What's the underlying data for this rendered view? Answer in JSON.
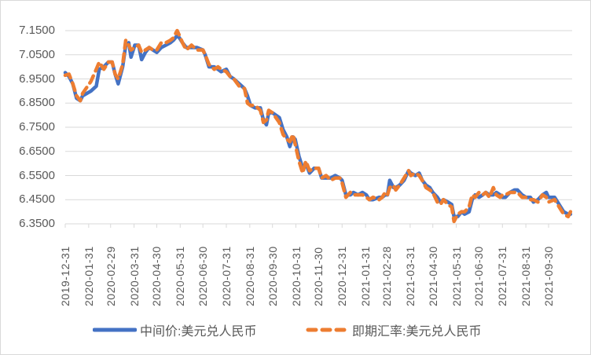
{
  "chart_data": {
    "type": "line",
    "title": "",
    "xlabel": "",
    "ylabel": "",
    "ylim": [
      6.35,
      7.15
    ],
    "grid": true,
    "legend_position": "bottom",
    "y_ticks": [
      "7.1500",
      "7.0500",
      "6.9500",
      "6.8500",
      "6.7500",
      "6.6500",
      "6.5500",
      "6.4500",
      "6.3500"
    ],
    "x_ticks": [
      "2019-12-31",
      "2020-01-31",
      "2020-02-29",
      "2020-03-31",
      "2020-04-30",
      "2020-05-31",
      "2020-06-30",
      "2020-07-31",
      "2020-08-31",
      "2020-09-30",
      "2020-10-31",
      "2020-11-30",
      "2020-12-31",
      "2021-01-31",
      "2021-02-28",
      "2021-03-31",
      "2021-04-30",
      "2021-05-31",
      "2021-06-30",
      "2021-07-31",
      "2021-08-31",
      "2021-09-30"
    ],
    "series": [
      {
        "name": "中间价:美元兑人民币",
        "color": "#4472c4",
        "style": "solid",
        "points": [
          [
            "2019-12-31",
            6.976
          ],
          [
            "2020-01-05",
            6.96
          ],
          [
            "2020-01-10",
            6.93
          ],
          [
            "2020-01-15",
            6.87
          ],
          [
            "2020-01-20",
            6.86
          ],
          [
            "2020-01-23",
            6.88
          ],
          [
            "2020-02-03",
            6.9
          ],
          [
            "2020-02-10",
            6.92
          ],
          [
            "2020-02-14",
            6.99
          ],
          [
            "2020-02-20",
            7.0
          ],
          [
            "2020-02-26",
            7.02
          ],
          [
            "2020-03-02",
            7.02
          ],
          [
            "2020-03-06",
            6.97
          ],
          [
            "2020-03-10",
            6.93
          ],
          [
            "2020-03-16",
            7.0
          ],
          [
            "2020-03-20",
            7.09
          ],
          [
            "2020-03-24",
            7.1
          ],
          [
            "2020-03-27",
            7.04
          ],
          [
            "2020-04-01",
            7.09
          ],
          [
            "2020-04-06",
            7.09
          ],
          [
            "2020-04-10",
            7.03
          ],
          [
            "2020-04-15",
            7.06
          ],
          [
            "2020-04-20",
            7.08
          ],
          [
            "2020-04-25",
            7.07
          ],
          [
            "2020-04-30",
            7.06
          ],
          [
            "2020-05-06",
            7.08
          ],
          [
            "2020-05-12",
            7.09
          ],
          [
            "2020-05-18",
            7.1
          ],
          [
            "2020-05-22",
            7.11
          ],
          [
            "2020-05-27",
            7.13
          ],
          [
            "2020-05-30",
            7.12
          ],
          [
            "2020-06-03",
            7.1
          ],
          [
            "2020-06-08",
            7.08
          ],
          [
            "2020-06-15",
            7.08
          ],
          [
            "2020-06-22",
            7.08
          ],
          [
            "2020-06-30",
            7.07
          ],
          [
            "2020-07-03",
            7.05
          ],
          [
            "2020-07-08",
            7.0
          ],
          [
            "2020-07-15",
            7.0
          ],
          [
            "2020-07-20",
            6.99
          ],
          [
            "2020-07-24",
            6.98
          ],
          [
            "2020-07-31",
            6.99
          ],
          [
            "2020-08-05",
            6.96
          ],
          [
            "2020-08-10",
            6.95
          ],
          [
            "2020-08-17",
            6.93
          ],
          [
            "2020-08-24",
            6.91
          ],
          [
            "2020-08-28",
            6.88
          ],
          [
            "2020-09-01",
            6.84
          ],
          [
            "2020-09-07",
            6.83
          ],
          [
            "2020-09-14",
            6.83
          ],
          [
            "2020-09-18",
            6.78
          ],
          [
            "2020-09-22",
            6.76
          ],
          [
            "2020-09-25",
            6.81
          ],
          [
            "2020-09-30",
            6.81
          ],
          [
            "2020-10-09",
            6.79
          ],
          [
            "2020-10-14",
            6.74
          ],
          [
            "2020-10-19",
            6.71
          ],
          [
            "2020-10-23",
            6.67
          ],
          [
            "2020-10-27",
            6.71
          ],
          [
            "2020-10-30",
            6.7
          ],
          [
            "2020-11-04",
            6.63
          ],
          [
            "2020-11-09",
            6.58
          ],
          [
            "2020-11-13",
            6.6
          ],
          [
            "2020-11-18",
            6.56
          ],
          [
            "2020-11-24",
            6.58
          ],
          [
            "2020-11-30",
            6.58
          ],
          [
            "2020-12-04",
            6.54
          ],
          [
            "2020-12-10",
            6.54
          ],
          [
            "2020-12-16",
            6.54
          ],
          [
            "2020-12-22",
            6.55
          ],
          [
            "2020-12-28",
            6.54
          ],
          [
            "2020-12-31",
            6.53
          ],
          [
            "2021-01-05",
            6.47
          ],
          [
            "2021-01-11",
            6.47
          ],
          [
            "2021-01-15",
            6.48
          ],
          [
            "2021-01-21",
            6.47
          ],
          [
            "2021-01-27",
            6.48
          ],
          [
            "2021-02-01",
            6.47
          ],
          [
            "2021-02-05",
            6.45
          ],
          [
            "2021-02-10",
            6.45
          ],
          [
            "2021-02-18",
            6.46
          ],
          [
            "2021-02-22",
            6.46
          ],
          [
            "2021-02-26",
            6.47
          ],
          [
            "2021-03-01",
            6.47
          ],
          [
            "2021-03-04",
            6.53
          ],
          [
            "2021-03-09",
            6.5
          ],
          [
            "2021-03-12",
            6.5
          ],
          [
            "2021-03-17",
            6.51
          ],
          [
            "2021-03-23",
            6.53
          ],
          [
            "2021-03-29",
            6.57
          ],
          [
            "2021-04-01",
            6.56
          ],
          [
            "2021-04-07",
            6.55
          ],
          [
            "2021-04-12",
            6.56
          ],
          [
            "2021-04-16",
            6.53
          ],
          [
            "2021-04-21",
            6.51
          ],
          [
            "2021-04-26",
            6.5
          ],
          [
            "2021-04-30",
            6.48
          ],
          [
            "2021-05-06",
            6.46
          ],
          [
            "2021-05-10",
            6.44
          ],
          [
            "2021-05-14",
            6.45
          ],
          [
            "2021-05-20",
            6.44
          ],
          [
            "2021-05-25",
            6.43
          ],
          [
            "2021-05-28",
            6.38
          ],
          [
            "2021-06-02",
            6.38
          ],
          [
            "2021-06-07",
            6.4
          ],
          [
            "2021-06-11",
            6.39
          ],
          [
            "2021-06-17",
            6.4
          ],
          [
            "2021-06-21",
            6.45
          ],
          [
            "2021-06-25",
            6.47
          ],
          [
            "2021-06-30",
            6.46
          ],
          [
            "2021-07-05",
            6.47
          ],
          [
            "2021-07-09",
            6.48
          ],
          [
            "2021-07-14",
            6.47
          ],
          [
            "2021-07-19",
            6.47
          ],
          [
            "2021-07-23",
            6.48
          ],
          [
            "2021-07-28",
            6.47
          ],
          [
            "2021-07-31",
            6.46
          ],
          [
            "2021-08-04",
            6.46
          ],
          [
            "2021-08-10",
            6.48
          ],
          [
            "2021-08-16",
            6.49
          ],
          [
            "2021-08-20",
            6.49
          ],
          [
            "2021-08-26",
            6.47
          ],
          [
            "2021-08-31",
            6.46
          ],
          [
            "2021-09-06",
            6.46
          ],
          [
            "2021-09-10",
            6.44
          ],
          [
            "2021-09-16",
            6.45
          ],
          [
            "2021-09-22",
            6.47
          ],
          [
            "2021-09-27",
            6.48
          ],
          [
            "2021-09-30",
            6.46
          ],
          [
            "2021-10-08",
            6.46
          ],
          [
            "2021-10-14",
            6.43
          ],
          [
            "2021-10-20",
            6.4
          ],
          [
            "2021-10-26",
            6.39
          ],
          [
            "2021-10-29",
            6.39
          ]
        ]
      },
      {
        "name": "即期汇率:美元兑人民币",
        "color": "#ed7d31",
        "style": "dashed",
        "points": [
          [
            "2019-12-31",
            6.965
          ],
          [
            "2020-01-05",
            6.97
          ],
          [
            "2020-01-10",
            6.93
          ],
          [
            "2020-01-15",
            6.88
          ],
          [
            "2020-01-20",
            6.86
          ],
          [
            "2020-01-23",
            6.89
          ],
          [
            "2020-02-03",
            6.94
          ],
          [
            "2020-02-10",
            6.99
          ],
          [
            "2020-02-14",
            7.02
          ],
          [
            "2020-02-20",
            6.99
          ],
          [
            "2020-02-26",
            7.02
          ],
          [
            "2020-03-02",
            7.02
          ],
          [
            "2020-03-06",
            6.97
          ],
          [
            "2020-03-10",
            6.95
          ],
          [
            "2020-03-16",
            7.01
          ],
          [
            "2020-03-20",
            7.11
          ],
          [
            "2020-03-24",
            7.09
          ],
          [
            "2020-03-27",
            7.07
          ],
          [
            "2020-04-01",
            7.08
          ],
          [
            "2020-04-06",
            7.09
          ],
          [
            "2020-04-10",
            7.06
          ],
          [
            "2020-04-15",
            7.07
          ],
          [
            "2020-04-20",
            7.08
          ],
          [
            "2020-04-25",
            7.07
          ],
          [
            "2020-04-30",
            7.07
          ],
          [
            "2020-05-06",
            7.1
          ],
          [
            "2020-05-12",
            7.1
          ],
          [
            "2020-05-18",
            7.11
          ],
          [
            "2020-05-22",
            7.12
          ],
          [
            "2020-05-27",
            7.15
          ],
          [
            "2020-05-30",
            7.13
          ],
          [
            "2020-06-03",
            7.1
          ],
          [
            "2020-06-08",
            7.07
          ],
          [
            "2020-06-15",
            7.09
          ],
          [
            "2020-06-22",
            7.07
          ],
          [
            "2020-06-30",
            7.07
          ],
          [
            "2020-07-03",
            7.05
          ],
          [
            "2020-07-08",
            7.01
          ],
          [
            "2020-07-15",
            6.99
          ],
          [
            "2020-07-20",
            7.0
          ],
          [
            "2020-07-24",
            6.99
          ],
          [
            "2020-07-31",
            6.98
          ],
          [
            "2020-08-05",
            6.96
          ],
          [
            "2020-08-10",
            6.95
          ],
          [
            "2020-08-17",
            6.92
          ],
          [
            "2020-08-24",
            6.91
          ],
          [
            "2020-08-28",
            6.85
          ],
          [
            "2020-09-01",
            6.84
          ],
          [
            "2020-09-07",
            6.84
          ],
          [
            "2020-09-14",
            6.82
          ],
          [
            "2020-09-18",
            6.77
          ],
          [
            "2020-09-22",
            6.78
          ],
          [
            "2020-09-25",
            6.82
          ],
          [
            "2020-09-30",
            6.81
          ],
          [
            "2020-10-09",
            6.77
          ],
          [
            "2020-10-14",
            6.72
          ],
          [
            "2020-10-19",
            6.7
          ],
          [
            "2020-10-23",
            6.69
          ],
          [
            "2020-10-27",
            6.72
          ],
          [
            "2020-10-30",
            6.68
          ],
          [
            "2020-11-04",
            6.61
          ],
          [
            "2020-11-09",
            6.56
          ],
          [
            "2020-11-13",
            6.61
          ],
          [
            "2020-11-18",
            6.57
          ],
          [
            "2020-11-24",
            6.58
          ],
          [
            "2020-11-30",
            6.58
          ],
          [
            "2020-12-04",
            6.54
          ],
          [
            "2020-12-10",
            6.55
          ],
          [
            "2020-12-16",
            6.53
          ],
          [
            "2020-12-22",
            6.54
          ],
          [
            "2020-12-28",
            6.54
          ],
          [
            "2020-12-31",
            6.52
          ],
          [
            "2021-01-05",
            6.46
          ],
          [
            "2021-01-11",
            6.48
          ],
          [
            "2021-01-15",
            6.47
          ],
          [
            "2021-01-21",
            6.47
          ],
          [
            "2021-01-27",
            6.47
          ],
          [
            "2021-02-01",
            6.46
          ],
          [
            "2021-02-05",
            6.45
          ],
          [
            "2021-02-10",
            6.46
          ],
          [
            "2021-02-18",
            6.45
          ],
          [
            "2021-02-22",
            6.46
          ],
          [
            "2021-02-26",
            6.48
          ],
          [
            "2021-03-01",
            6.47
          ],
          [
            "2021-03-04",
            6.5
          ],
          [
            "2021-03-09",
            6.51
          ],
          [
            "2021-03-12",
            6.49
          ],
          [
            "2021-03-17",
            6.51
          ],
          [
            "2021-03-23",
            6.54
          ],
          [
            "2021-03-29",
            6.57
          ],
          [
            "2021-04-01",
            6.55
          ],
          [
            "2021-04-07",
            6.56
          ],
          [
            "2021-04-12",
            6.55
          ],
          [
            "2021-04-16",
            6.53
          ],
          [
            "2021-04-21",
            6.5
          ],
          [
            "2021-04-26",
            6.49
          ],
          [
            "2021-04-30",
            6.48
          ],
          [
            "2021-05-06",
            6.44
          ],
          [
            "2021-05-10",
            6.43
          ],
          [
            "2021-05-14",
            6.45
          ],
          [
            "2021-05-20",
            6.43
          ],
          [
            "2021-05-25",
            6.42
          ],
          [
            "2021-05-28",
            6.36
          ],
          [
            "2021-06-02",
            6.39
          ],
          [
            "2021-06-07",
            6.4
          ],
          [
            "2021-06-11",
            6.4
          ],
          [
            "2021-06-17",
            6.42
          ],
          [
            "2021-06-21",
            6.47
          ],
          [
            "2021-06-25",
            6.46
          ],
          [
            "2021-06-30",
            6.48
          ],
          [
            "2021-07-05",
            6.47
          ],
          [
            "2021-07-09",
            6.48
          ],
          [
            "2021-07-14",
            6.46
          ],
          [
            "2021-07-19",
            6.5
          ],
          [
            "2021-07-23",
            6.47
          ],
          [
            "2021-07-28",
            6.46
          ],
          [
            "2021-07-31",
            6.47
          ],
          [
            "2021-08-04",
            6.47
          ],
          [
            "2021-08-10",
            6.48
          ],
          [
            "2021-08-16",
            6.48
          ],
          [
            "2021-08-20",
            6.48
          ],
          [
            "2021-08-26",
            6.46
          ],
          [
            "2021-08-31",
            6.46
          ],
          [
            "2021-09-06",
            6.45
          ],
          [
            "2021-09-10",
            6.45
          ],
          [
            "2021-09-16",
            6.44
          ],
          [
            "2021-09-22",
            6.47
          ],
          [
            "2021-09-27",
            6.46
          ],
          [
            "2021-09-30",
            6.44
          ],
          [
            "2021-10-08",
            6.45
          ],
          [
            "2021-10-14",
            6.42
          ],
          [
            "2021-10-20",
            6.39
          ],
          [
            "2021-10-26",
            6.38
          ],
          [
            "2021-10-29",
            6.4
          ]
        ]
      }
    ]
  },
  "legend": {
    "items": [
      {
        "label": "中间价:美元兑人民币",
        "color": "#4472c4",
        "style": "solid"
      },
      {
        "label": "即期汇率:美元兑人民币",
        "color": "#ed7d31",
        "style": "dashed"
      }
    ]
  },
  "colors": {
    "grid": "#d9d9d9",
    "axis_text": "#595959",
    "border": "#d9d9d9"
  }
}
